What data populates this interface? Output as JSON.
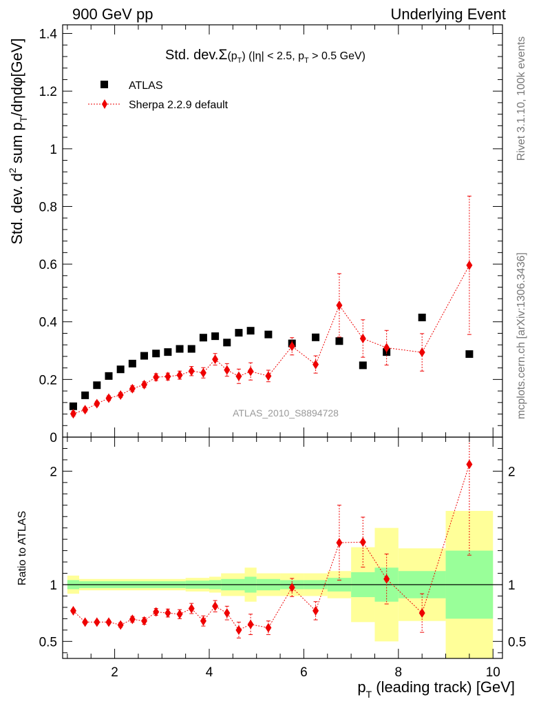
{
  "header": {
    "left": "900 GeV pp",
    "right": "Underlying Event"
  },
  "side_texts": {
    "rivet": "Rivet 3.1.10,  100k events",
    "mcplots": "mcplots.cern.ch [arXiv:1306.3436]"
  },
  "watermark": "ATLAS_2010_S8894728",
  "chart_data": [
    {
      "type": "scatter",
      "title": "Std. dev. Σ(pT) (|η| < 2.5, pT > 0.5 GeV)",
      "title_parts": {
        "prefix": "Std. dev.",
        "sigma": "Σ",
        "p1": "(p",
        "sub_t": "T",
        "p2": ") (|η| < 2.5, p",
        "sub_t2": "T",
        "p3": " > 0.5 GeV)"
      },
      "ylabel_parts": {
        "a": "Std. dev. d",
        "sup2": "2",
        "b": " sum p",
        "subT": "T",
        "c": "/dηdφ[GeV]"
      },
      "xlabel_parts": {
        "a": "p",
        "subT": "T",
        "b": " (leading track) [GeV]"
      },
      "xlim": [
        0.9,
        10.2
      ],
      "ylim": [
        0,
        1.43
      ],
      "y_ticks": [
        0,
        0.2,
        0.4,
        0.6,
        0.8,
        1,
        1.2,
        1.4
      ],
      "y_tick_labels": [
        "0",
        "0.2",
        "0.4",
        "0.6",
        "0.8",
        "1",
        "1.2",
        "1.4"
      ],
      "legend": {
        "atlas": "ATLAS",
        "sherpa": "Sherpa 2.2.9 default"
      },
      "atlas": {
        "color": "#000000",
        "x": [
          1.125,
          1.375,
          1.625,
          1.875,
          2.125,
          2.375,
          2.625,
          2.875,
          3.125,
          3.375,
          3.625,
          3.875,
          4.125,
          4.375,
          4.625,
          4.875,
          5.25,
          5.75,
          6.25,
          6.75,
          7.25,
          7.75,
          8.5,
          9.5
        ],
        "y": [
          0.107,
          0.145,
          0.18,
          0.212,
          0.235,
          0.255,
          0.282,
          0.29,
          0.295,
          0.306,
          0.306,
          0.345,
          0.35,
          0.328,
          0.362,
          0.369,
          0.356,
          0.325,
          0.346,
          0.333,
          0.249,
          0.295,
          0.415,
          0.288
        ]
      },
      "sherpa": {
        "color": "#ee0000",
        "x": [
          1.125,
          1.375,
          1.625,
          1.875,
          2.125,
          2.375,
          2.625,
          2.875,
          3.125,
          3.375,
          3.625,
          3.875,
          4.125,
          4.375,
          4.625,
          4.875,
          5.25,
          5.75,
          6.25,
          6.75,
          7.25,
          7.75,
          8.5,
          9.5
        ],
        "y": [
          0.081,
          0.095,
          0.116,
          0.135,
          0.146,
          0.168,
          0.182,
          0.208,
          0.21,
          0.215,
          0.229,
          0.223,
          0.27,
          0.233,
          0.211,
          0.228,
          0.212,
          0.315,
          0.252,
          0.457,
          0.342,
          0.31,
          0.294,
          0.596
        ],
        "err": [
          0.008,
          0.008,
          0.008,
          0.008,
          0.008,
          0.01,
          0.01,
          0.012,
          0.012,
          0.014,
          0.016,
          0.018,
          0.02,
          0.022,
          0.025,
          0.03,
          0.02,
          0.03,
          0.03,
          0.11,
          0.065,
          0.06,
          0.065,
          0.24
        ]
      }
    },
    {
      "type": "scatter",
      "ylabel": "Ratio to ATLAS",
      "xlim": [
        0.9,
        10.2
      ],
      "ylim": [
        0.35,
        2.3
      ],
      "x_ticks": [
        2,
        4,
        6,
        8,
        10
      ],
      "x_tick_labels": [
        "2",
        "4",
        "6",
        "8",
        "10"
      ],
      "y_ticks": [
        0.5,
        1,
        2
      ],
      "y_tick_labels": [
        "0.5",
        "1",
        "2"
      ],
      "bands": {
        "inner_color": "#99ff99",
        "outer_color": "#ffff99",
        "bins": [
          {
            "lo": 1.0,
            "hi": 1.25,
            "i_lo": 0.96,
            "i_hi": 1.04,
            "o_lo": 0.92,
            "o_hi": 1.08
          },
          {
            "lo": 1.25,
            "hi": 3.5,
            "i_lo": 0.97,
            "i_hi": 1.03,
            "o_lo": 0.95,
            "o_hi": 1.05
          },
          {
            "lo": 3.5,
            "hi": 4.0,
            "i_lo": 0.965,
            "i_hi": 1.035,
            "o_lo": 0.94,
            "o_hi": 1.06
          },
          {
            "lo": 4.0,
            "hi": 4.25,
            "i_lo": 0.96,
            "i_hi": 1.04,
            "o_lo": 0.93,
            "o_hi": 1.07
          },
          {
            "lo": 4.25,
            "hi": 4.75,
            "i_lo": 0.95,
            "i_hi": 1.05,
            "o_lo": 0.9,
            "o_hi": 1.1
          },
          {
            "lo": 4.75,
            "hi": 5.0,
            "i_lo": 0.93,
            "i_hi": 1.07,
            "o_lo": 0.85,
            "o_hi": 1.15
          },
          {
            "lo": 5.0,
            "hi": 5.5,
            "i_lo": 0.95,
            "i_hi": 1.05,
            "o_lo": 0.9,
            "o_hi": 1.1
          },
          {
            "lo": 5.5,
            "hi": 6.0,
            "i_lo": 0.96,
            "i_hi": 1.04,
            "o_lo": 0.9,
            "o_hi": 1.1
          },
          {
            "lo": 6.0,
            "hi": 6.5,
            "i_lo": 0.96,
            "i_hi": 1.04,
            "o_lo": 0.9,
            "o_hi": 1.1
          },
          {
            "lo": 6.5,
            "hi": 7.0,
            "i_lo": 0.94,
            "i_hi": 1.06,
            "o_lo": 0.88,
            "o_hi": 1.12
          },
          {
            "lo": 7.0,
            "hi": 7.5,
            "i_lo": 0.89,
            "i_hi": 1.11,
            "o_lo": 0.67,
            "o_hi": 1.33
          },
          {
            "lo": 7.5,
            "hi": 8.0,
            "i_lo": 0.85,
            "i_hi": 1.15,
            "o_lo": 0.5,
            "o_hi": 1.5
          },
          {
            "lo": 8.0,
            "hi": 9.0,
            "i_lo": 0.88,
            "i_hi": 1.12,
            "o_lo": 0.68,
            "o_hi": 1.32
          },
          {
            "lo": 9.0,
            "hi": 10.0,
            "i_lo": 0.7,
            "i_hi": 1.3,
            "o_lo": 0.35,
            "o_hi": 1.65
          }
        ]
      },
      "sherpa_ratio": {
        "x": [
          1.125,
          1.375,
          1.625,
          1.875,
          2.125,
          2.375,
          2.625,
          2.875,
          3.125,
          3.375,
          3.625,
          3.875,
          4.125,
          4.375,
          4.625,
          4.875,
          5.25,
          5.75,
          6.25,
          6.75,
          7.25,
          7.75,
          8.5,
          9.5
        ],
        "y": [
          0.77,
          0.67,
          0.67,
          0.67,
          0.645,
          0.695,
          0.68,
          0.76,
          0.75,
          0.74,
          0.79,
          0.68,
          0.81,
          0.75,
          0.6,
          0.65,
          0.62,
          0.975,
          0.77,
          1.37,
          1.375,
          1.05,
          0.75,
          2.06
        ],
        "err": [
          0.015,
          0.015,
          0.015,
          0.015,
          0.02,
          0.025,
          0.03,
          0.03,
          0.035,
          0.04,
          0.045,
          0.045,
          0.05,
          0.06,
          0.07,
          0.09,
          0.06,
          0.08,
          0.08,
          0.33,
          0.22,
          0.22,
          0.17,
          0.8
        ]
      }
    }
  ]
}
